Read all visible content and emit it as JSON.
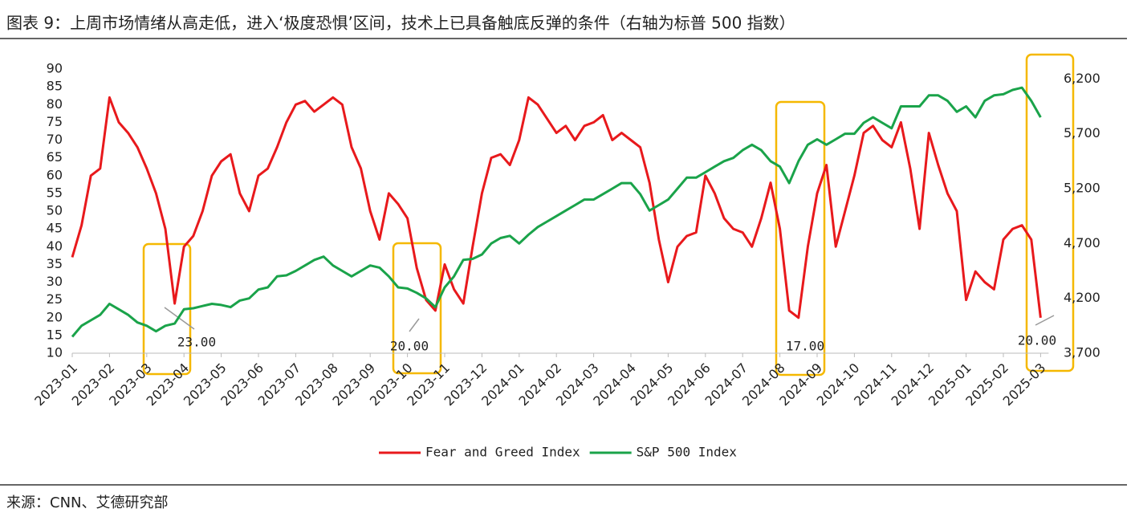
{
  "chart_data": {
    "type": "line",
    "title": "图表 9：上周市场情绪从高走低，进入‘极度恐惧’区间，技术上已具备触底反弹的条件（右轴为标普 500 指数）",
    "source": "来源：CNN、艾德研究部",
    "categories": [
      "2023-01",
      null,
      null,
      null,
      "2023-02",
      null,
      null,
      null,
      "2023-03",
      null,
      null,
      null,
      "2023-04",
      null,
      null,
      null,
      "2023-05",
      null,
      null,
      null,
      "2023-06",
      null,
      null,
      null,
      "2023-07",
      null,
      null,
      null,
      "2023-08",
      null,
      null,
      null,
      "2023-09",
      null,
      null,
      null,
      "2023-10",
      null,
      null,
      null,
      "2023-11",
      null,
      null,
      null,
      "2023-12",
      null,
      null,
      null,
      "2024-01",
      null,
      null,
      null,
      "2024-02",
      null,
      null,
      null,
      "2024-03",
      null,
      null,
      null,
      "2024-04",
      null,
      null,
      null,
      "2024-05",
      null,
      null,
      null,
      "2024-06",
      null,
      null,
      null,
      "2024-07",
      null,
      null,
      null,
      "2024-08",
      null,
      null,
      null,
      "2024-09",
      null,
      null,
      null,
      "2024-10",
      null,
      null,
      null,
      "2024-11",
      null,
      null,
      null,
      "2024-12",
      null,
      null,
      null,
      "2025-01",
      null,
      null,
      null,
      "2025-02",
      null,
      null,
      null,
      "2025-03"
    ],
    "series": [
      {
        "name": "Fear and Greed Index",
        "color": "#e8191c",
        "axis": "y",
        "values": [
          37,
          46,
          60,
          62,
          82,
          75,
          72,
          68,
          62,
          55,
          45,
          24,
          40,
          43,
          50,
          60,
          64,
          66,
          55,
          50,
          60,
          62,
          68,
          75,
          80,
          81,
          78,
          80,
          82,
          80,
          68,
          62,
          50,
          42,
          55,
          52,
          48,
          34,
          25,
          22,
          35,
          28,
          24,
          40,
          55,
          65,
          66,
          63,
          70,
          82,
          80,
          76,
          72,
          74,
          70,
          74,
          75,
          77,
          70,
          72,
          70,
          68,
          58,
          42,
          30,
          40,
          43,
          44,
          60,
          55,
          48,
          45,
          44,
          40,
          48,
          58,
          45,
          22,
          20,
          40,
          55,
          63,
          40,
          50,
          60,
          72,
          74,
          70,
          68,
          75,
          62,
          45,
          72,
          63,
          55,
          50,
          25,
          33,
          30,
          28,
          42,
          45,
          46,
          42,
          20
        ]
      },
      {
        "name": "S&P 500 Index",
        "color": "#1aa34a",
        "axis": "y2",
        "values": [
          3850,
          3950,
          4000,
          4050,
          4150,
          4100,
          4050,
          3980,
          3950,
          3900,
          3950,
          3970,
          4100,
          4110,
          4130,
          4150,
          4140,
          4120,
          4180,
          4200,
          4280,
          4300,
          4400,
          4410,
          4450,
          4500,
          4550,
          4580,
          4500,
          4450,
          4400,
          4450,
          4500,
          4480,
          4400,
          4300,
          4290,
          4250,
          4200,
          4120,
          4300,
          4400,
          4550,
          4560,
          4600,
          4700,
          4750,
          4770,
          4700,
          4780,
          4850,
          4900,
          4950,
          5000,
          5050,
          5100,
          5100,
          5150,
          5200,
          5250,
          5250,
          5150,
          5000,
          5050,
          5100,
          5200,
          5300,
          5300,
          5350,
          5400,
          5450,
          5480,
          5550,
          5600,
          5550,
          5450,
          5400,
          5250,
          5450,
          5600,
          5650,
          5600,
          5650,
          5700,
          5700,
          5800,
          5850,
          5800,
          5750,
          5950,
          5950,
          5950,
          6050,
          6050,
          6000,
          5900,
          5950,
          5850,
          6000,
          6050,
          6060,
          6100,
          6120,
          6000,
          5850
        ]
      }
    ],
    "ylim": [
      10,
      90
    ],
    "yticks": [
      10,
      15,
      20,
      25,
      30,
      35,
      40,
      45,
      50,
      55,
      60,
      65,
      70,
      75,
      80,
      85,
      90
    ],
    "y2lim": [
      3700,
      6290
    ],
    "y2ticks": [
      {
        "value": 3700,
        "label": "3,700"
      },
      {
        "value": 4200,
        "label": "4,200"
      },
      {
        "value": 4700,
        "label": "4,700"
      },
      {
        "value": 5200,
        "label": "5,200"
      },
      {
        "value": 5700,
        "label": "5,700"
      },
      {
        "value": 6200,
        "label": "6,200"
      }
    ],
    "annotations": [
      "23.00",
      "20.00",
      "17.00",
      "20.00"
    ],
    "grid": false
  }
}
